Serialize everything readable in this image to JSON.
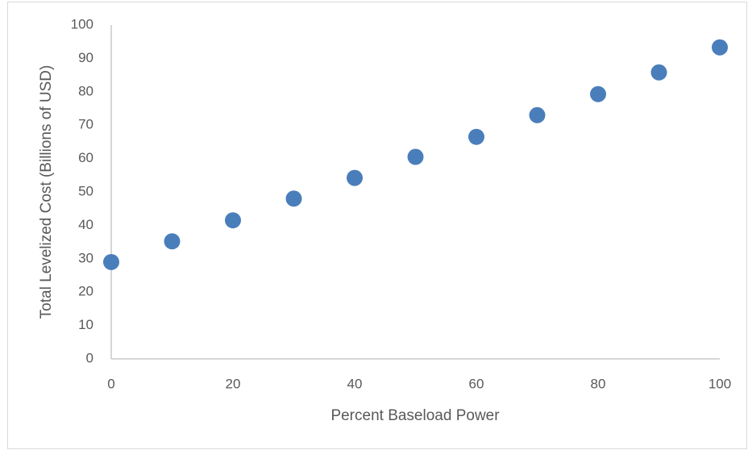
{
  "chart_data": {
    "type": "scatter",
    "x_label": "Percent Baseload Power",
    "y_label": "Total Levelized Cost (Billions of USD)",
    "series": [
      {
        "name": "Total Levelized Cost",
        "color": "#4a7ebb",
        "x": [
          0,
          10,
          20,
          30,
          40,
          50,
          60,
          70,
          80,
          90,
          100
        ],
        "values": [
          29,
          35.2,
          41.5,
          48,
          54.2,
          60.5,
          66.5,
          73,
          79.3,
          85.8,
          93.3
        ]
      }
    ],
    "xlim": [
      0,
      100
    ],
    "xticks": [
      0,
      20,
      40,
      60,
      80,
      100
    ],
    "ylim": [
      0,
      100
    ],
    "yticks": [
      0,
      10,
      20,
      30,
      40,
      50,
      60,
      70,
      80,
      90,
      100
    ],
    "grid": false,
    "legend": false
  }
}
